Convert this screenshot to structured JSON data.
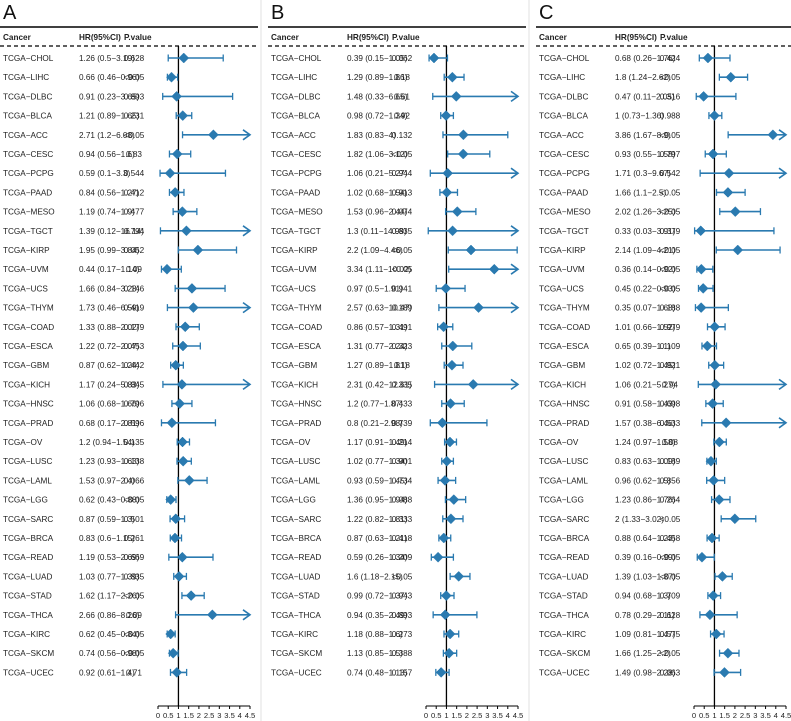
{
  "header": {
    "cancer": "Cancer",
    "hr": "HR(95%CI)",
    "p": "P.value"
  },
  "colors": {
    "marker": "#2a7ab0",
    "line": "#000000",
    "text": "#222222"
  },
  "x_ticks": [
    0,
    0.5,
    1,
    1.5,
    2,
    2.5,
    3,
    3.5,
    4,
    4.5
  ],
  "chart_data": [
    {
      "type": "forest",
      "panel_label": "A",
      "xlim": [
        0,
        4.5
      ],
      "reference_line": 1,
      "rows": [
        {
          "cancer": "TCGA−CHOL",
          "hr_text": "1.26 (0.5−3.19)",
          "p": "0.628",
          "hr": 1.26,
          "lo": 0.5,
          "hi": 3.19
        },
        {
          "cancer": "TCGA−LIHC",
          "hr_text": "0.66 (0.46−0.96)",
          "p": "<0.05",
          "hr": 0.66,
          "lo": 0.46,
          "hi": 0.96
        },
        {
          "cancer": "TCGA−DLBC",
          "hr_text": "0.91 (0.23−3.65)",
          "p": "0.893",
          "hr": 0.91,
          "lo": 0.23,
          "hi": 3.65
        },
        {
          "cancer": "TCGA−BLCA",
          "hr_text": "1.21 (0.89−1.65)",
          "p": "0.231",
          "hr": 1.21,
          "lo": 0.89,
          "hi": 1.65
        },
        {
          "cancer": "TCGA−ACC",
          "hr_text": "2.71 (1.2−6.08)",
          "p": "<0.05",
          "hr": 2.71,
          "lo": 1.2,
          "hi": 6.08
        },
        {
          "cancer": "TCGA−CESC",
          "hr_text": "0.94 (0.56−1.6)",
          "p": "0.83",
          "hr": 0.94,
          "lo": 0.56,
          "hi": 1.6
        },
        {
          "cancer": "TCGA−PCPG",
          "hr_text": "0.59 (0.1−3.3)",
          "p": "0.544",
          "hr": 0.59,
          "lo": 0.1,
          "hi": 3.3
        },
        {
          "cancer": "TCGA−PAAD",
          "hr_text": "0.84 (0.56−1.27)",
          "p": "0.412",
          "hr": 0.84,
          "lo": 0.56,
          "hi": 1.27
        },
        {
          "cancer": "TCGA−MESO",
          "hr_text": "1.19 (0.74−1.9)",
          "p": "0.477",
          "hr": 1.19,
          "lo": 0.74,
          "hi": 1.9
        },
        {
          "cancer": "TCGA−TGCT",
          "hr_text": "1.39 (0.12−16.14)",
          "p": "0.794",
          "hr": 1.39,
          "lo": 0.12,
          "hi": 16.14
        },
        {
          "cancer": "TCGA−KIRP",
          "hr_text": "1.95 (0.99−3.84)",
          "p": "0.052",
          "hr": 1.95,
          "lo": 0.99,
          "hi": 3.84
        },
        {
          "cancer": "TCGA−UVM",
          "hr_text": "0.44 (0.17−1.14)",
          "p": "0.09",
          "hr": 0.44,
          "lo": 0.17,
          "hi": 1.14
        },
        {
          "cancer": "TCGA−UCS",
          "hr_text": "1.66 (0.84−3.28)",
          "p": "0.146",
          "hr": 1.66,
          "lo": 0.84,
          "hi": 3.28
        },
        {
          "cancer": "TCGA−THYM",
          "hr_text": "1.73 (0.46−6.59)",
          "p": "0.419",
          "hr": 1.73,
          "lo": 0.46,
          "hi": 6.59
        },
        {
          "cancer": "TCGA−COAD",
          "hr_text": "1.33 (0.88−2.02)",
          "p": "0.179",
          "hr": 1.33,
          "lo": 0.88,
          "hi": 2.02
        },
        {
          "cancer": "TCGA−ESCA",
          "hr_text": "1.22 (0.72−2.07)",
          "p": "0.453",
          "hr": 1.22,
          "lo": 0.72,
          "hi": 2.07
        },
        {
          "cancer": "TCGA−GBM",
          "hr_text": "0.87 (0.62−1.24)",
          "p": "0.442",
          "hr": 0.87,
          "lo": 0.62,
          "hi": 1.24
        },
        {
          "cancer": "TCGA−KICH",
          "hr_text": "1.17 (0.24−5.83)",
          "p": "0.845",
          "hr": 1.17,
          "lo": 0.24,
          "hi": 5.83
        },
        {
          "cancer": "TCGA−HNSC",
          "hr_text": "1.06 (0.68−1.66)",
          "p": "0.796",
          "hr": 1.06,
          "lo": 0.68,
          "hi": 1.66
        },
        {
          "cancer": "TCGA−PRAD",
          "hr_text": "0.68 (0.17−2.81)",
          "p": "0.596",
          "hr": 0.68,
          "lo": 0.17,
          "hi": 2.81
        },
        {
          "cancer": "TCGA−OV",
          "hr_text": "1.2 (0.94−1.54)",
          "p": "0.135",
          "hr": 1.2,
          "lo": 0.94,
          "hi": 1.54
        },
        {
          "cancer": "TCGA−LUSC",
          "hr_text": "1.23 (0.93−1.63)",
          "p": "0.138",
          "hr": 1.23,
          "lo": 0.93,
          "hi": 1.63
        },
        {
          "cancer": "TCGA−LAML",
          "hr_text": "1.53 (0.97−2.4)",
          "p": "0.066",
          "hr": 1.53,
          "lo": 0.97,
          "hi": 2.4
        },
        {
          "cancer": "TCGA−LGG",
          "hr_text": "0.62 (0.43−0.88)",
          "p": "<0.05",
          "hr": 0.62,
          "lo": 0.43,
          "hi": 0.88
        },
        {
          "cancer": "TCGA−SARC",
          "hr_text": "0.87 (0.59−1.3)",
          "p": "0.501",
          "hr": 0.87,
          "lo": 0.59,
          "hi": 1.3
        },
        {
          "cancer": "TCGA−BRCA",
          "hr_text": "0.83 (0.6−1.15)",
          "p": "0.261",
          "hr": 0.83,
          "lo": 0.6,
          "hi": 1.15
        },
        {
          "cancer": "TCGA−READ",
          "hr_text": "1.19 (0.53−2.69)",
          "p": "0.669",
          "hr": 1.19,
          "lo": 0.53,
          "hi": 2.69
        },
        {
          "cancer": "TCGA−LUAD",
          "hr_text": "1.03 (0.77−1.39)",
          "p": "0.835",
          "hr": 1.03,
          "lo": 0.77,
          "hi": 1.39
        },
        {
          "cancer": "TCGA−STAD",
          "hr_text": "1.62 (1.17−2.26)",
          "p": "<0.05",
          "hr": 1.62,
          "lo": 1.17,
          "hi": 2.26
        },
        {
          "cancer": "TCGA−THCA",
          "hr_text": "2.66 (0.86−8.26)",
          "p": "0.09",
          "hr": 2.66,
          "lo": 0.86,
          "hi": 8.26
        },
        {
          "cancer": "TCGA−KIRC",
          "hr_text": "0.62 (0.45−0.84)",
          "p": "<0.05",
          "hr": 0.62,
          "lo": 0.45,
          "hi": 0.84
        },
        {
          "cancer": "TCGA−SKCM",
          "hr_text": "0.74 (0.56−0.98)",
          "p": "<0.05",
          "hr": 0.74,
          "lo": 0.56,
          "hi": 0.98
        },
        {
          "cancer": "TCGA−UCEC",
          "hr_text": "0.92 (0.61−1.4)",
          "p": "0.71",
          "hr": 0.92,
          "lo": 0.61,
          "hi": 1.4
        }
      ]
    },
    {
      "type": "forest",
      "panel_label": "B",
      "xlim": [
        0,
        4.5
      ],
      "reference_line": 1,
      "rows": [
        {
          "cancer": "TCGA−CHOL",
          "hr_text": "0.39 (0.15−1.05)",
          "p": "0.062",
          "hr": 0.39,
          "lo": 0.15,
          "hi": 1.05
        },
        {
          "cancer": "TCGA−LIHC",
          "hr_text": "1.29 (0.89−1.86)",
          "p": "0.18",
          "hr": 1.29,
          "lo": 0.89,
          "hi": 1.86
        },
        {
          "cancer": "TCGA−DLBC",
          "hr_text": "1.48 (0.33−6.65)",
          "p": "0.61",
          "hr": 1.48,
          "lo": 0.33,
          "hi": 6.65
        },
        {
          "cancer": "TCGA−BLCA",
          "hr_text": "0.98 (0.72−1.34)",
          "p": "0.92",
          "hr": 0.98,
          "lo": 0.72,
          "hi": 1.34
        },
        {
          "cancer": "TCGA−ACC",
          "hr_text": "1.83 (0.83−4)",
          "p": "0.132",
          "hr": 1.83,
          "lo": 0.83,
          "hi": 4
        },
        {
          "cancer": "TCGA−CESC",
          "hr_text": "1.82 (1.06−3.12)",
          "p": "<0.05",
          "hr": 1.82,
          "lo": 1.06,
          "hi": 3.12
        },
        {
          "cancer": "TCGA−PCPG",
          "hr_text": "1.06 (0.21−5.27)",
          "p": "0.944",
          "hr": 1.06,
          "lo": 0.21,
          "hi": 5.27
        },
        {
          "cancer": "TCGA−PAAD",
          "hr_text": "1.02 (0.68−1.54)",
          "p": "0.913",
          "hr": 1.02,
          "lo": 0.68,
          "hi": 1.54
        },
        {
          "cancer": "TCGA−MESO",
          "hr_text": "1.53 (0.96−2.44)",
          "p": "0.074",
          "hr": 1.53,
          "lo": 0.96,
          "hi": 2.44
        },
        {
          "cancer": "TCGA−TGCT",
          "hr_text": "1.3 (0.11−14.99)",
          "p": "0.835",
          "hr": 1.3,
          "lo": 0.11,
          "hi": 14.99
        },
        {
          "cancer": "TCGA−KIRP",
          "hr_text": "2.2 (1.09−4.46)",
          "p": "<0.05",
          "hr": 2.2,
          "lo": 1.09,
          "hi": 4.46
        },
        {
          "cancer": "TCGA−UVM",
          "hr_text": "3.34 (1.11−10.02)",
          "p": "<0.05",
          "hr": 3.34,
          "lo": 1.11,
          "hi": 10.02
        },
        {
          "cancer": "TCGA−UCS",
          "hr_text": "0.97 (0.5−1.91)",
          "p": "0.941",
          "hr": 0.97,
          "lo": 0.5,
          "hi": 1.91
        },
        {
          "cancer": "TCGA−THYM",
          "hr_text": "2.57 (0.63−10.47)",
          "p": "0.189",
          "hr": 2.57,
          "lo": 0.63,
          "hi": 10.47
        },
        {
          "cancer": "TCGA−COAD",
          "hr_text": "0.86 (0.57−1.31)",
          "p": "0.491",
          "hr": 0.86,
          "lo": 0.57,
          "hi": 1.31
        },
        {
          "cancer": "TCGA−ESCA",
          "hr_text": "1.31 (0.77−2.24)",
          "p": "0.323",
          "hr": 1.31,
          "lo": 0.77,
          "hi": 2.24
        },
        {
          "cancer": "TCGA−GBM",
          "hr_text": "1.27 (0.89−1.81)",
          "p": "0.18",
          "hr": 1.27,
          "lo": 0.89,
          "hi": 1.81
        },
        {
          "cancer": "TCGA−KICH",
          "hr_text": "2.31 (0.42−12.61)",
          "p": "0.335",
          "hr": 2.31,
          "lo": 0.42,
          "hi": 12.61
        },
        {
          "cancer": "TCGA−HNSC",
          "hr_text": "1.2 (0.77−1.87)",
          "p": "0.433",
          "hr": 1.2,
          "lo": 0.77,
          "hi": 1.87
        },
        {
          "cancer": "TCGA−PRAD",
          "hr_text": "0.8 (0.21−2.98)",
          "p": "0.739",
          "hr": 0.8,
          "lo": 0.21,
          "hi": 2.98
        },
        {
          "cancer": "TCGA−OV",
          "hr_text": "1.17 (0.91−1.49)",
          "p": "0.214",
          "hr": 1.17,
          "lo": 0.91,
          "hi": 1.49
        },
        {
          "cancer": "TCGA−LUSC",
          "hr_text": "1.02 (0.77−1.34)",
          "p": "0.901",
          "hr": 1.02,
          "lo": 0.77,
          "hi": 1.34
        },
        {
          "cancer": "TCGA−LAML",
          "hr_text": "0.93 (0.59−1.45)",
          "p": "0.734",
          "hr": 0.93,
          "lo": 0.59,
          "hi": 1.45
        },
        {
          "cancer": "TCGA−LGG",
          "hr_text": "1.36 (0.95−1.94)",
          "p": "0.088",
          "hr": 1.36,
          "lo": 0.95,
          "hi": 1.94
        },
        {
          "cancer": "TCGA−SARC",
          "hr_text": "1.22 (0.82−1.81)",
          "p": "0.333",
          "hr": 1.22,
          "lo": 0.82,
          "hi": 1.81
        },
        {
          "cancer": "TCGA−BRCA",
          "hr_text": "0.87 (0.63−1.21)",
          "p": "0.418",
          "hr": 0.87,
          "lo": 0.63,
          "hi": 1.21
        },
        {
          "cancer": "TCGA−READ",
          "hr_text": "0.59 (0.26−1.34)",
          "p": "0.209",
          "hr": 0.59,
          "lo": 0.26,
          "hi": 1.34
        },
        {
          "cancer": "TCGA−LUAD",
          "hr_text": "1.6 (1.18−2.15)",
          "p": "<0.05",
          "hr": 1.6,
          "lo": 1.18,
          "hi": 2.15
        },
        {
          "cancer": "TCGA−STAD",
          "hr_text": "0.99 (0.72−1.37)",
          "p": "0.943",
          "hr": 0.99,
          "lo": 0.72,
          "hi": 1.37
        },
        {
          "cancer": "TCGA−THCA",
          "hr_text": "0.94 (0.35−2.49)",
          "p": "0.893",
          "hr": 0.94,
          "lo": 0.35,
          "hi": 2.49
        },
        {
          "cancer": "TCGA−KIRC",
          "hr_text": "1.18 (0.88−1.6)",
          "p": "0.273",
          "hr": 1.18,
          "lo": 0.88,
          "hi": 1.6
        },
        {
          "cancer": "TCGA−SKCM",
          "hr_text": "1.13 (0.85−1.5)",
          "p": "0.388",
          "hr": 1.13,
          "lo": 0.85,
          "hi": 1.5
        },
        {
          "cancer": "TCGA−UCEC",
          "hr_text": "0.74 (0.48−1.13)",
          "p": "0.157",
          "hr": 0.74,
          "lo": 0.48,
          "hi": 1.13
        }
      ]
    },
    {
      "type": "forest",
      "panel_label": "C",
      "xlim": [
        0,
        4.5
      ],
      "reference_line": 1,
      "rows": [
        {
          "cancer": "TCGA−CHOL",
          "hr_text": "0.68 (0.26−1.76)",
          "p": "0.424",
          "hr": 0.68,
          "lo": 0.26,
          "hi": 1.76
        },
        {
          "cancer": "TCGA−LIHC",
          "hr_text": "1.8 (1.24−2.62)",
          "p": "<0.05",
          "hr": 1.8,
          "lo": 1.24,
          "hi": 2.62
        },
        {
          "cancer": "TCGA−DLBC",
          "hr_text": "0.47 (0.11−2.05)",
          "p": "0.316",
          "hr": 0.47,
          "lo": 0.11,
          "hi": 2.05
        },
        {
          "cancer": "TCGA−BLCA",
          "hr_text": "1 (0.73−1.36)",
          "p": "0.988",
          "hr": 1,
          "lo": 0.73,
          "hi": 1.36
        },
        {
          "cancer": "TCGA−ACC",
          "hr_text": "3.86 (1.67−8.9)",
          "p": "<0.05",
          "hr": 3.86,
          "lo": 1.67,
          "hi": 8.9
        },
        {
          "cancer": "TCGA−CESC",
          "hr_text": "0.93 (0.55−1.58)",
          "p": "0.797",
          "hr": 0.93,
          "lo": 0.55,
          "hi": 1.58
        },
        {
          "cancer": "TCGA−PCPG",
          "hr_text": "1.71 (0.3−9.67)",
          "p": "0.542",
          "hr": 1.71,
          "lo": 0.3,
          "hi": 9.67
        },
        {
          "cancer": "TCGA−PAAD",
          "hr_text": "1.66 (1.1−2.5)",
          "p": "<0.05",
          "hr": 1.66,
          "lo": 1.1,
          "hi": 2.5
        },
        {
          "cancer": "TCGA−MESO",
          "hr_text": "2.02 (1.26−3.25)",
          "p": "<0.05",
          "hr": 2.02,
          "lo": 1.26,
          "hi": 3.25
        },
        {
          "cancer": "TCGA−TGCT",
          "hr_text": "0.33 (0.03−3.91)",
          "p": "0.379",
          "hr": 0.33,
          "lo": 0.03,
          "hi": 3.91
        },
        {
          "cancer": "TCGA−KIRP",
          "hr_text": "2.14 (1.09−4.21)",
          "p": "<0.05",
          "hr": 2.14,
          "lo": 1.09,
          "hi": 4.21
        },
        {
          "cancer": "TCGA−UVM",
          "hr_text": "0.36 (0.14−0.92)",
          "p": "<0.05",
          "hr": 0.36,
          "lo": 0.14,
          "hi": 0.92
        },
        {
          "cancer": "TCGA−UCS",
          "hr_text": "0.45 (0.22−0.93)",
          "p": "<0.05",
          "hr": 0.45,
          "lo": 0.22,
          "hi": 0.93
        },
        {
          "cancer": "TCGA−THYM",
          "hr_text": "0.35 (0.07−1.68)",
          "p": "0.188",
          "hr": 0.35,
          "lo": 0.07,
          "hi": 1.68
        },
        {
          "cancer": "TCGA−COAD",
          "hr_text": "1.01 (0.66−1.52)",
          "p": "0.979",
          "hr": 1.01,
          "lo": 0.66,
          "hi": 1.52
        },
        {
          "cancer": "TCGA−ESCA",
          "hr_text": "0.65 (0.39−1.1)",
          "p": "0.109",
          "hr": 0.65,
          "lo": 0.39,
          "hi": 1.1
        },
        {
          "cancer": "TCGA−GBM",
          "hr_text": "1.02 (0.72−1.45)",
          "p": "0.921",
          "hr": 1.02,
          "lo": 0.72,
          "hi": 1.45
        },
        {
          "cancer": "TCGA−KICH",
          "hr_text": "1.06 (0.21−5.27)",
          "p": "0.94",
          "hr": 1.06,
          "lo": 0.21,
          "hi": 5.27
        },
        {
          "cancer": "TCGA−HNSC",
          "hr_text": "0.91 (0.58−1.43)",
          "p": "0.698",
          "hr": 0.91,
          "lo": 0.58,
          "hi": 1.43
        },
        {
          "cancer": "TCGA−PRAD",
          "hr_text": "1.57 (0.38−6.46)",
          "p": "0.533",
          "hr": 1.57,
          "lo": 0.38,
          "hi": 6.46
        },
        {
          "cancer": "TCGA−OV",
          "hr_text": "1.24 (0.97−1.58)",
          "p": "0.08",
          "hr": 1.24,
          "lo": 0.97,
          "hi": 1.58
        },
        {
          "cancer": "TCGA−LUSC",
          "hr_text": "0.83 (0.63−1.09)",
          "p": "0.189",
          "hr": 0.83,
          "lo": 0.63,
          "hi": 1.09
        },
        {
          "cancer": "TCGA−LAML",
          "hr_text": "0.96 (0.62−1.5)",
          "p": "0.856",
          "hr": 0.96,
          "lo": 0.62,
          "hi": 1.5
        },
        {
          "cancer": "TCGA−LGG",
          "hr_text": "1.23 (0.86−1.76)",
          "p": "0.264",
          "hr": 1.23,
          "lo": 0.86,
          "hi": 1.76
        },
        {
          "cancer": "TCGA−SARC",
          "hr_text": "2 (1.33−3.02)",
          "p": "<0.05",
          "hr": 2,
          "lo": 1.33,
          "hi": 3.02
        },
        {
          "cancer": "TCGA−BRCA",
          "hr_text": "0.88 (0.64−1.23)",
          "p": "0.458",
          "hr": 0.88,
          "lo": 0.64,
          "hi": 1.23
        },
        {
          "cancer": "TCGA−READ",
          "hr_text": "0.39 (0.16−0.99)",
          "p": "<0.05",
          "hr": 0.39,
          "lo": 0.16,
          "hi": 0.99
        },
        {
          "cancer": "TCGA−LUAD",
          "hr_text": "1.39 (1.03−1.87)",
          "p": "<0.05",
          "hr": 1.39,
          "lo": 1.03,
          "hi": 1.87
        },
        {
          "cancer": "TCGA−STAD",
          "hr_text": "0.94 (0.68−1.3)",
          "p": "0.709",
          "hr": 0.94,
          "lo": 0.68,
          "hi": 1.3
        },
        {
          "cancer": "TCGA−THCA",
          "hr_text": "0.78 (0.29−2.11)",
          "p": "0.628",
          "hr": 0.78,
          "lo": 0.29,
          "hi": 2.11
        },
        {
          "cancer": "TCGA−KIRC",
          "hr_text": "1.09 (0.81−1.47)",
          "p": "0.575",
          "hr": 1.09,
          "lo": 0.81,
          "hi": 1.47
        },
        {
          "cancer": "TCGA−SKCM",
          "hr_text": "1.66 (1.25−2.2)",
          "p": "<0.05",
          "hr": 1.66,
          "lo": 1.25,
          "hi": 2.2
        },
        {
          "cancer": "TCGA−UCEC",
          "hr_text": "1.49 (0.98−2.28)",
          "p": "0.063",
          "hr": 1.49,
          "lo": 0.98,
          "hi": 2.28
        }
      ]
    }
  ]
}
